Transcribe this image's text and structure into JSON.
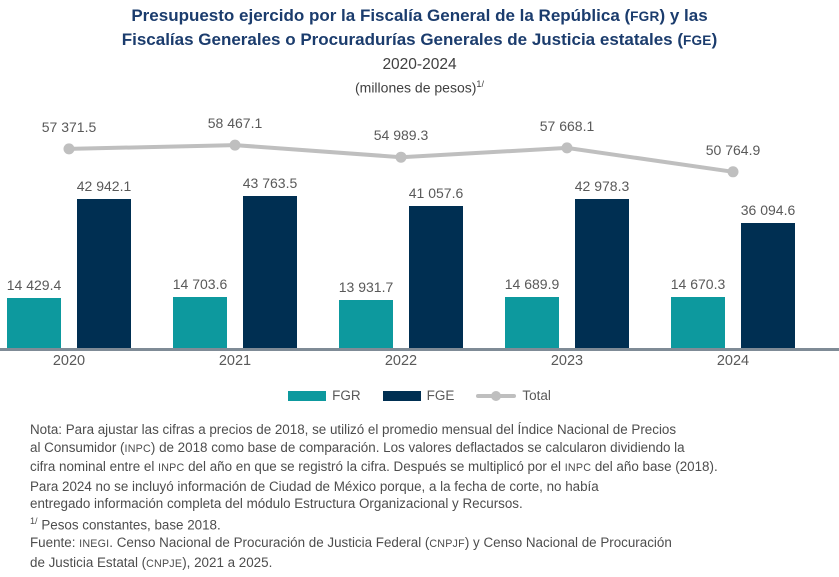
{
  "header": {
    "title_lines": [
      "Presupuesto ejercido por la Fiscalía General de la República (FGR) y las",
      "Fiscalías Generales o Procuradurías Generales de Justicia estatales (FGE)"
    ],
    "subtitle": "2020-2024",
    "unit_label": "(millones de pesos)",
    "unit_superscript": "1/"
  },
  "chart_data": {
    "type": "bar",
    "title": "Presupuesto ejercido por la Fiscalía General de la República (FGR) y las Fiscalías Generales o Procuradurías Generales de Justicia estatales (FGE), 2020-2024 (millones de pesos, pesos constantes base 2018)",
    "categories": [
      "2020",
      "2021",
      "2022",
      "2023",
      "2024"
    ],
    "series": [
      {
        "name": "FGR",
        "type": "bar",
        "color": "#0D999E",
        "values": [
          14429.4,
          14703.6,
          13931.7,
          14689.9,
          14670.3
        ]
      },
      {
        "name": "FGE",
        "type": "bar",
        "color": "#002F52",
        "values": [
          42942.1,
          43763.5,
          41057.6,
          42978.3,
          36094.6
        ]
      },
      {
        "name": "Total",
        "type": "line",
        "color": "#BFBFBF",
        "values": [
          57371.5,
          58467.1,
          54989.3,
          57668.1,
          50764.9
        ]
      }
    ],
    "xlabel": "",
    "ylabel": "",
    "ylim": [
      0,
      62000
    ],
    "grid": false,
    "y_axis_shown": false,
    "legend_position": "bottom",
    "value_labels": "every point, format with space as thousands separator and one decimal"
  },
  "legend": {
    "items": [
      {
        "label": "FGR",
        "swatch": "bar",
        "color": "#0D999E"
      },
      {
        "label": "FGE",
        "swatch": "bar",
        "color": "#002F52"
      },
      {
        "label": "Total",
        "swatch": "line-marker",
        "color": "#BFBFBF"
      }
    ]
  },
  "notes": {
    "lines": [
      {
        "text": "Nota: Para ajustar las cifras a precios de 2018, se utilizó el promedio mensual del Índice Nacional de Precios"
      },
      {
        "text": "al Consumidor (INPC) de 2018 como base de comparación. Los valores deflactados se calcularon dividiendo la"
      },
      {
        "text": "cifra nominal entre el INPC del año en que se registró la cifra. Después se multiplicó por el INPC del año base (2018)."
      },
      {
        "text": "Para 2024 no se incluyó información de Ciudad de México porque, a la fecha de corte, no había"
      },
      {
        "text": "entregado información completa del módulo Estructura Organizacional y Recursos."
      },
      {
        "sup": "1/",
        "text": " Pesos constantes, base 2018."
      },
      {
        "text": "Fuente: INEGI. Censo Nacional de Procuración de Justicia Federal (CNPJF) y Censo Nacional de Procuración"
      },
      {
        "text": "de Justicia Estatal (CNPJE), 2021 a 2025."
      }
    ]
  },
  "typography": {
    "smallcaps_acronyms": [
      "FGR",
      "FGE",
      "INPC",
      "INEGI",
      "CNPJF",
      "CNPJE"
    ]
  },
  "colors": {
    "title": "#1B3C6D",
    "subtitle": "#404040",
    "value_labels": "#595959",
    "notes": "#4D4D4D",
    "axis_line": "#7F8B96",
    "fgr_bar": "#0D999E",
    "fge_bar": "#002F52",
    "total_line": "#BFBFBF",
    "background": "#FFFFFF"
  }
}
